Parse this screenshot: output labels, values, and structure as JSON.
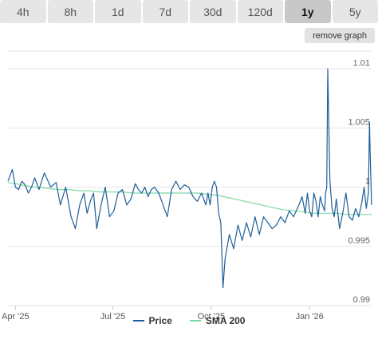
{
  "tabs": [
    {
      "label": "4h",
      "active": false
    },
    {
      "label": "8h",
      "active": false
    },
    {
      "label": "1d",
      "active": false
    },
    {
      "label": "7d",
      "active": false
    },
    {
      "label": "30d",
      "active": false
    },
    {
      "label": "120d",
      "active": false
    },
    {
      "label": "1y",
      "active": true
    },
    {
      "label": "5y",
      "active": false
    }
  ],
  "remove_graph_label": "remove graph",
  "colors": {
    "price": "#1f5f99",
    "sma": "#7fd8a4",
    "grid": "#e6e6e6"
  },
  "chart_data": {
    "type": "line",
    "ylim": [
      0.99,
      1.0115
    ],
    "yticks": [
      {
        "value": 1.01,
        "label": "1.01"
      },
      {
        "value": 1.005,
        "label": "1.005"
      },
      {
        "value": 1.0,
        "label": "1"
      },
      {
        "value": 0.995,
        "label": "0.995"
      },
      {
        "value": 0.99,
        "label": "0.99"
      }
    ],
    "xticks": [
      {
        "x": 0,
        "label": "Apr '25"
      },
      {
        "x": 91,
        "label": "Jul '25"
      },
      {
        "x": 183,
        "label": "Oct '25"
      },
      {
        "x": 275,
        "label": "Jan '26"
      }
    ],
    "xlim": [
      -7,
      333
    ],
    "grid": true,
    "legend_position": "bottom",
    "series": [
      {
        "name": "Price",
        "x": [
          -7,
          -3,
          0,
          3,
          6,
          9,
          12,
          15,
          18,
          22,
          27,
          33,
          38,
          42,
          47,
          52,
          56,
          60,
          64,
          67,
          70,
          73,
          76,
          80,
          84,
          88,
          92,
          96,
          100,
          104,
          108,
          112,
          115,
          118,
          121,
          124,
          127,
          130,
          134,
          138,
          142,
          146,
          150,
          154,
          158,
          162,
          166,
          170,
          174,
          178,
          180,
          182,
          184,
          186,
          188,
          190,
          192,
          194,
          196,
          200,
          204,
          208,
          212,
          216,
          220,
          224,
          228,
          232,
          236,
          240,
          244,
          248,
          252,
          256,
          260,
          265,
          268,
          271,
          273,
          275,
          277,
          279,
          281,
          283,
          285,
          287,
          289,
          290,
          291,
          292,
          294,
          296,
          298,
          300,
          303,
          306,
          309,
          312,
          315,
          318,
          321,
          324,
          326,
          328,
          330,
          331,
          332,
          333
        ],
        "values": [
          1.0005,
          1.0015,
          1.0,
          0.9998,
          1.0005,
          1.0002,
          0.9995,
          1.0,
          1.0008,
          0.9998,
          1.0012,
          1.0,
          1.0004,
          0.9985,
          1.0,
          0.9975,
          0.9965,
          0.9985,
          0.9995,
          0.9978,
          0.9988,
          0.9995,
          0.9965,
          0.9985,
          1.0,
          0.9975,
          0.998,
          0.9995,
          0.9998,
          0.9985,
          0.999,
          1.0003,
          0.9998,
          0.9995,
          1.0,
          0.9992,
          0.9998,
          1.0,
          0.9995,
          0.9985,
          0.9975,
          0.9998,
          1.0005,
          0.9998,
          1.0002,
          1.0,
          0.9992,
          0.9988,
          0.9995,
          0.9985,
          0.9995,
          0.9985,
          1.0,
          1.0005,
          1.0,
          0.9978,
          0.997,
          0.9915,
          0.994,
          0.996,
          0.9948,
          0.9968,
          0.9955,
          0.997,
          0.9958,
          0.9975,
          0.996,
          0.9975,
          0.997,
          0.9965,
          0.9968,
          0.9975,
          0.997,
          0.998,
          0.9975,
          0.9985,
          0.9992,
          0.9978,
          0.9995,
          0.998,
          0.9975,
          0.9995,
          0.9988,
          0.9975,
          0.9992,
          0.9985,
          0.998,
          0.9995,
          1.0,
          1.01,
          1.0005,
          0.9982,
          0.9975,
          0.999,
          0.9965,
          0.9978,
          0.9995,
          0.9975,
          0.9972,
          0.9982,
          0.9975,
          0.9988,
          1.0,
          0.9982,
          0.9995,
          1.0055,
          1.0015,
          0.9985
        ]
      },
      {
        "name": "SMA 200",
        "x": [
          -7,
          0,
          10,
          20,
          30,
          40,
          50,
          60,
          70,
          80,
          90,
          100,
          110,
          120,
          130,
          140,
          150,
          160,
          170,
          180,
          190,
          200,
          210,
          220,
          230,
          240,
          250,
          260,
          270,
          280,
          290,
          300,
          310,
          320,
          333
        ],
        "values": [
          1.0004,
          1.0003,
          1.0001,
          1.0,
          0.9999,
          0.9998,
          0.9998,
          0.9997,
          0.9997,
          0.9996,
          0.9996,
          0.9996,
          0.9995,
          0.9995,
          0.9995,
          0.9995,
          0.9995,
          0.9995,
          0.9995,
          0.9994,
          0.9993,
          0.9991,
          0.9989,
          0.9987,
          0.9985,
          0.9983,
          0.9981,
          0.998,
          0.9979,
          0.9978,
          0.9978,
          0.9978,
          0.9977,
          0.9977,
          0.9977
        ]
      }
    ]
  }
}
